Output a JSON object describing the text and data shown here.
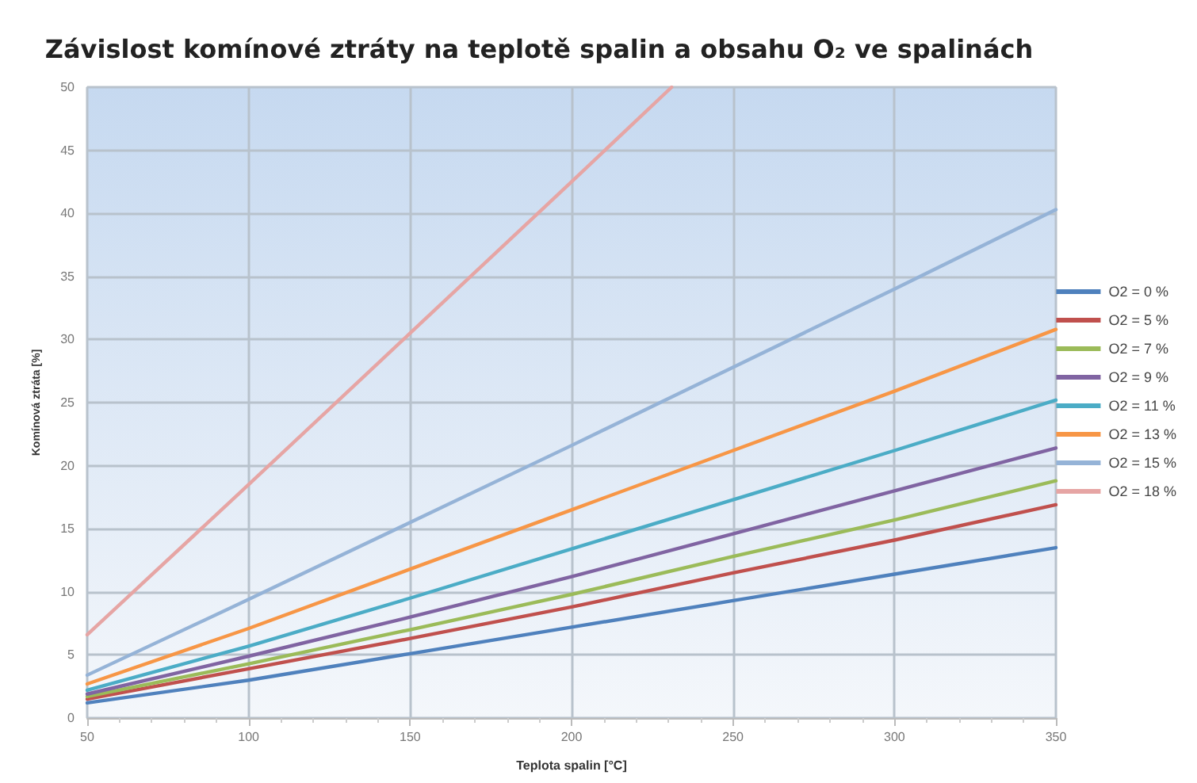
{
  "chart_data": {
    "type": "line",
    "title": "Závislost komínové ztráty na teplotě spalin a obsahu O₂ ve spalinách",
    "xlabel": "Teplota spalin [°C]",
    "ylabel": "Komínová ztráta [%]",
    "x": [
      50,
      100,
      150,
      200,
      250,
      300,
      350
    ],
    "series": [
      {
        "name": "O2 = 0 %",
        "color": "#4f81bd",
        "values": [
          1.2,
          3.0,
          5.1,
          7.2,
          9.3,
          11.4,
          13.5
        ]
      },
      {
        "name": "O2 = 5 %",
        "color": "#c0504d",
        "values": [
          1.5,
          3.9,
          6.3,
          8.8,
          11.5,
          14.1,
          16.9
        ]
      },
      {
        "name": "O2 = 7 %",
        "color": "#9bbb59",
        "values": [
          1.7,
          4.3,
          7.0,
          9.8,
          12.8,
          15.7,
          18.8
        ]
      },
      {
        "name": "O2 = 9 %",
        "color": "#8064a2",
        "values": [
          1.9,
          4.9,
          8.0,
          11.2,
          14.6,
          18.0,
          21.4
        ]
      },
      {
        "name": "O2 = 11 %",
        "color": "#4bacc6",
        "values": [
          2.2,
          5.7,
          9.5,
          13.4,
          17.3,
          21.2,
          25.2
        ]
      },
      {
        "name": "O2 = 13 %",
        "color": "#f79646",
        "values": [
          2.7,
          7.1,
          11.8,
          16.5,
          21.2,
          25.9,
          30.8
        ]
      },
      {
        "name": "O2 = 15 %",
        "color": "#95b3d7",
        "values": [
          3.4,
          9.4,
          15.5,
          21.6,
          27.8,
          34.0,
          40.3
        ]
      },
      {
        "name": "O2 = 18 %",
        "color": "#e6a5a4",
        "x": [
          50,
          100,
          150,
          200,
          231
        ],
        "values": [
          6.6,
          18.5,
          30.5,
          42.5,
          50
        ]
      }
    ],
    "xlim": [
      50,
      350
    ],
    "xticks": [
      50,
      100,
      150,
      200,
      250,
      300,
      350
    ],
    "ylim": [
      0,
      50
    ],
    "yticks": [
      0,
      5,
      10,
      15,
      20,
      25,
      30,
      35,
      40,
      45,
      50
    ],
    "grid": true,
    "legend": "right",
    "marker": "none",
    "line_style": "solid"
  }
}
